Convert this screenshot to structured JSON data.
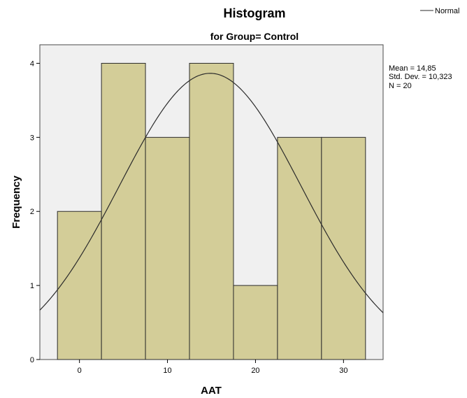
{
  "chart_data": {
    "type": "bar",
    "title": "Histogram",
    "subtitle": "for Group= Control",
    "xlabel": "AAT",
    "ylabel": "Frequency",
    "bins": [
      {
        "from": -2.5,
        "to": 2.5,
        "count": 2
      },
      {
        "from": 2.5,
        "to": 7.5,
        "count": 4
      },
      {
        "from": 7.5,
        "to": 12.5,
        "count": 3
      },
      {
        "from": 12.5,
        "to": 17.5,
        "count": 4
      },
      {
        "from": 17.5,
        "to": 22.5,
        "count": 1
      },
      {
        "from": 22.5,
        "to": 27.5,
        "count": 3
      },
      {
        "from": 27.5,
        "to": 32.5,
        "count": 3
      }
    ],
    "xlim": [
      -4.5,
      34.5
    ],
    "ylim": [
      0,
      4.25
    ],
    "xticks": [
      0,
      10,
      20,
      30
    ],
    "yticks": [
      0,
      1,
      2,
      3,
      4
    ],
    "normal_curve": {
      "mean": 14.85,
      "sd": 10.323,
      "n": 20,
      "bin_width": 5
    },
    "stats": [
      "Mean = 14,85",
      "Std. Dev. = 10,323",
      "N = 20"
    ],
    "legend": [
      "Normal"
    ],
    "colors": {
      "bar_fill": "#d3cd98",
      "bar_stroke": "#2b2b2b",
      "plot_bg": "#f0f0f0",
      "curve": "#2b2b2b"
    }
  }
}
